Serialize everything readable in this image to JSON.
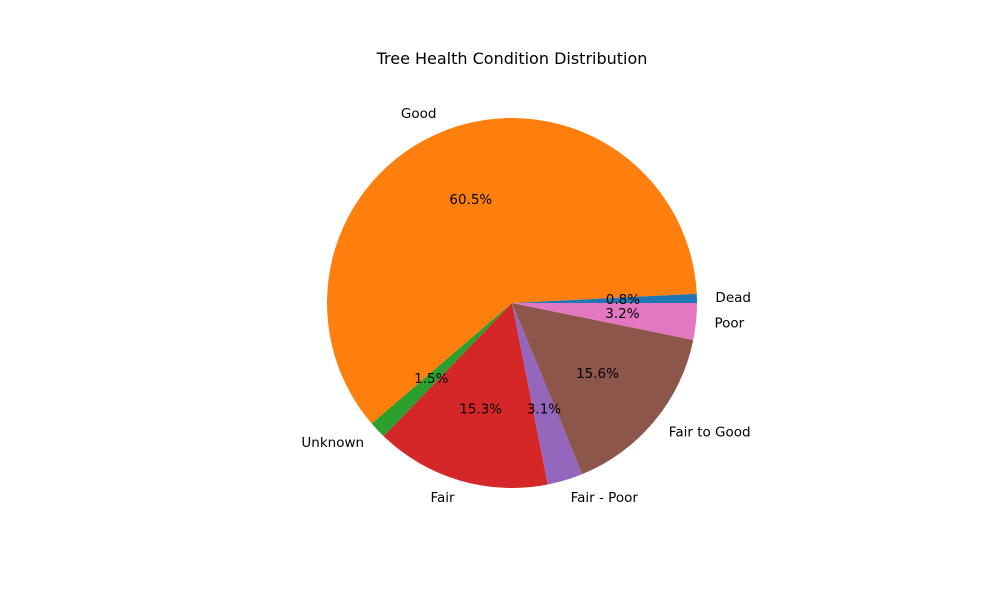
{
  "chart_data": {
    "type": "pie",
    "title": "Tree Health Condition Distribution",
    "slices": [
      {
        "label": "Dead",
        "value": 0.8,
        "pct_text": "0.8%",
        "color": "#1f77b4"
      },
      {
        "label": "Good",
        "value": 60.5,
        "pct_text": "60.5%",
        "color": "#ff7f0e"
      },
      {
        "label": "Unknown",
        "value": 1.5,
        "pct_text": "1.5%",
        "color": "#2ca02c"
      },
      {
        "label": "Fair",
        "value": 15.3,
        "pct_text": "15.3%",
        "color": "#d62728"
      },
      {
        "label": "Fair - Poor",
        "value": 3.1,
        "pct_text": "3.1%",
        "color": "#9467bd"
      },
      {
        "label": "Fair to Good",
        "value": 15.6,
        "pct_text": "15.6%",
        "color": "#8c564b"
      },
      {
        "label": "Poor",
        "value": 3.2,
        "pct_text": "3.2%",
        "color": "#e377c2"
      }
    ],
    "start_angle_deg": 0,
    "direction": "counterclockwise"
  }
}
